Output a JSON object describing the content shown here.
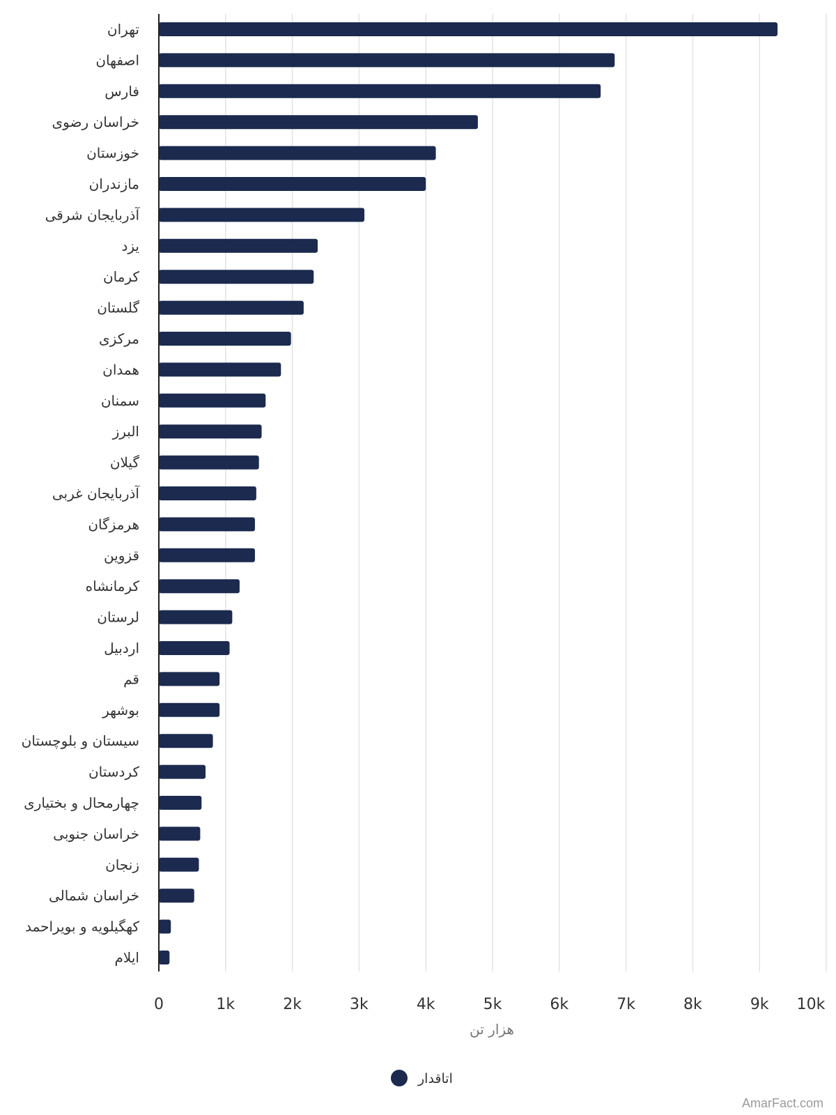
{
  "chart_data": {
    "type": "bar",
    "orientation": "horizontal",
    "title": "",
    "xlabel": "هزار تن",
    "ylabel": "",
    "xlim": [
      0,
      10000
    ],
    "x_ticks": [
      "0",
      "1k",
      "2k",
      "3k",
      "4k",
      "5k",
      "6k",
      "7k",
      "8k",
      "9k",
      "10k"
    ],
    "grid": true,
    "legend_position": "bottom",
    "bar_color": "#1b2a4e",
    "categories": [
      "تهران",
      "اصفهان",
      "فارس",
      "خراسان رضوی",
      "خوزستان",
      "مازندران",
      "آذربایجان شرقی",
      "یزد",
      "کرمان",
      "گلستان",
      "مرکزی",
      "همدان",
      "سمنان",
      "البرز",
      "گیلان",
      "آذربایجان غربی",
      "هرمزگان",
      "قزوین",
      "کرمانشاه",
      "لرستان",
      "اردبیل",
      "قم",
      "بوشهر",
      "سیستان و بلوچستان",
      "کردستان",
      "چهارمحال و بختیاری",
      "خراسان جنوبی",
      "زنجان",
      "خراسان شمالی",
      "کهگیلویه و بویراحمد",
      "ایلام"
    ],
    "series": [
      {
        "name": "اتاقدار",
        "values": [
          9270,
          6830,
          6620,
          4780,
          4150,
          4000,
          3080,
          2380,
          2320,
          2170,
          1980,
          1830,
          1600,
          1540,
          1500,
          1460,
          1440,
          1440,
          1210,
          1100,
          1060,
          910,
          910,
          810,
          700,
          640,
          620,
          600,
          530,
          180,
          160
        ]
      }
    ]
  },
  "credit": "AmarFact.com"
}
